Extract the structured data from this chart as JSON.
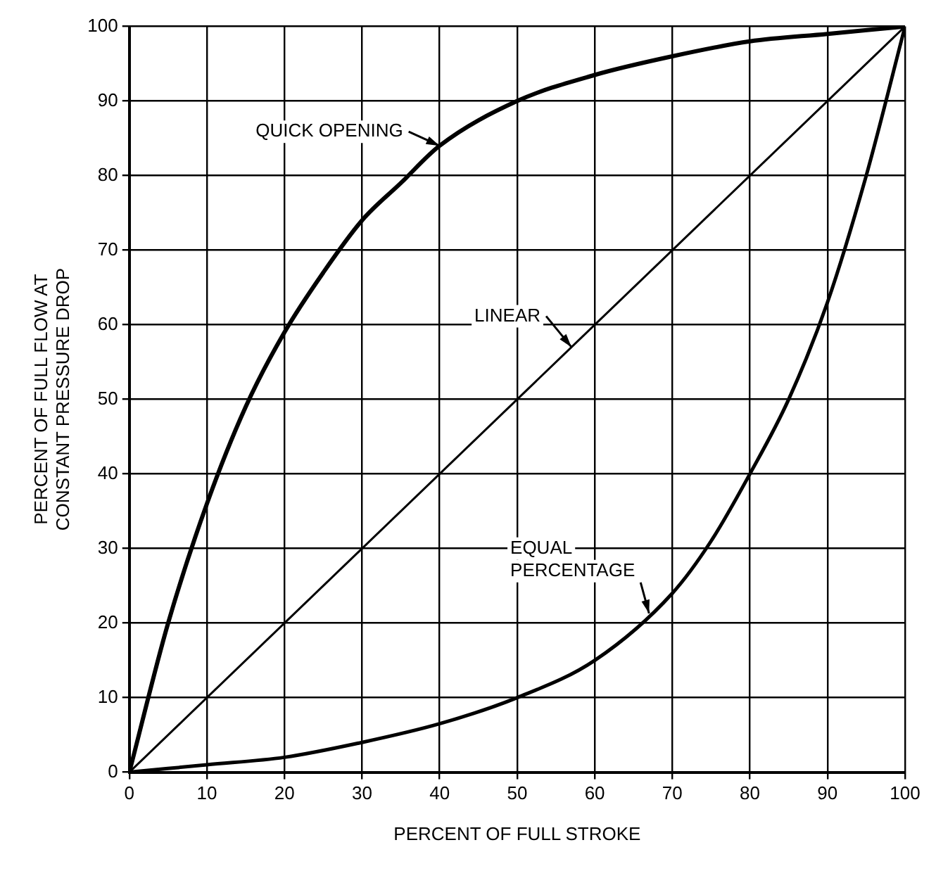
{
  "chart_data": {
    "type": "line",
    "xlabel": "PERCENT OF FULL STROKE",
    "ylabel": "PERCENT OF FULL FLOW AT CONSTANT PRESSURE DROP",
    "xlim": [
      0,
      100
    ],
    "xticks": [
      0,
      10,
      20,
      30,
      40,
      50,
      60,
      70,
      80,
      90,
      100
    ],
    "ylim": [
      0,
      100
    ],
    "yticks": [
      0,
      10,
      20,
      30,
      40,
      50,
      60,
      70,
      80,
      90,
      100
    ],
    "grid": true,
    "marker": "none",
    "line_style": "solid",
    "series": [
      {
        "name": "QUICK OPENING",
        "color": "#000000",
        "x": [
          0,
          5,
          10,
          15,
          20,
          25,
          30,
          35,
          40,
          50,
          60,
          70,
          80,
          90,
          100
        ],
        "values": [
          0,
          20,
          36,
          49,
          59,
          67,
          74,
          79,
          84,
          90,
          93.5,
          96,
          98,
          99,
          100
        ]
      },
      {
        "name": "LINEAR",
        "color": "#000000",
        "x": [
          0,
          100
        ],
        "values": [
          0,
          100
        ]
      },
      {
        "name": "EQUAL PERCENTAGE",
        "color": "#000000",
        "x": [
          0,
          10,
          20,
          30,
          40,
          50,
          60,
          70,
          75,
          80,
          85,
          90,
          95,
          100
        ],
        "values": [
          0,
          1,
          2,
          4,
          6.5,
          10,
          15,
          24,
          31,
          40,
          50,
          63,
          80,
          100
        ]
      }
    ]
  }
}
